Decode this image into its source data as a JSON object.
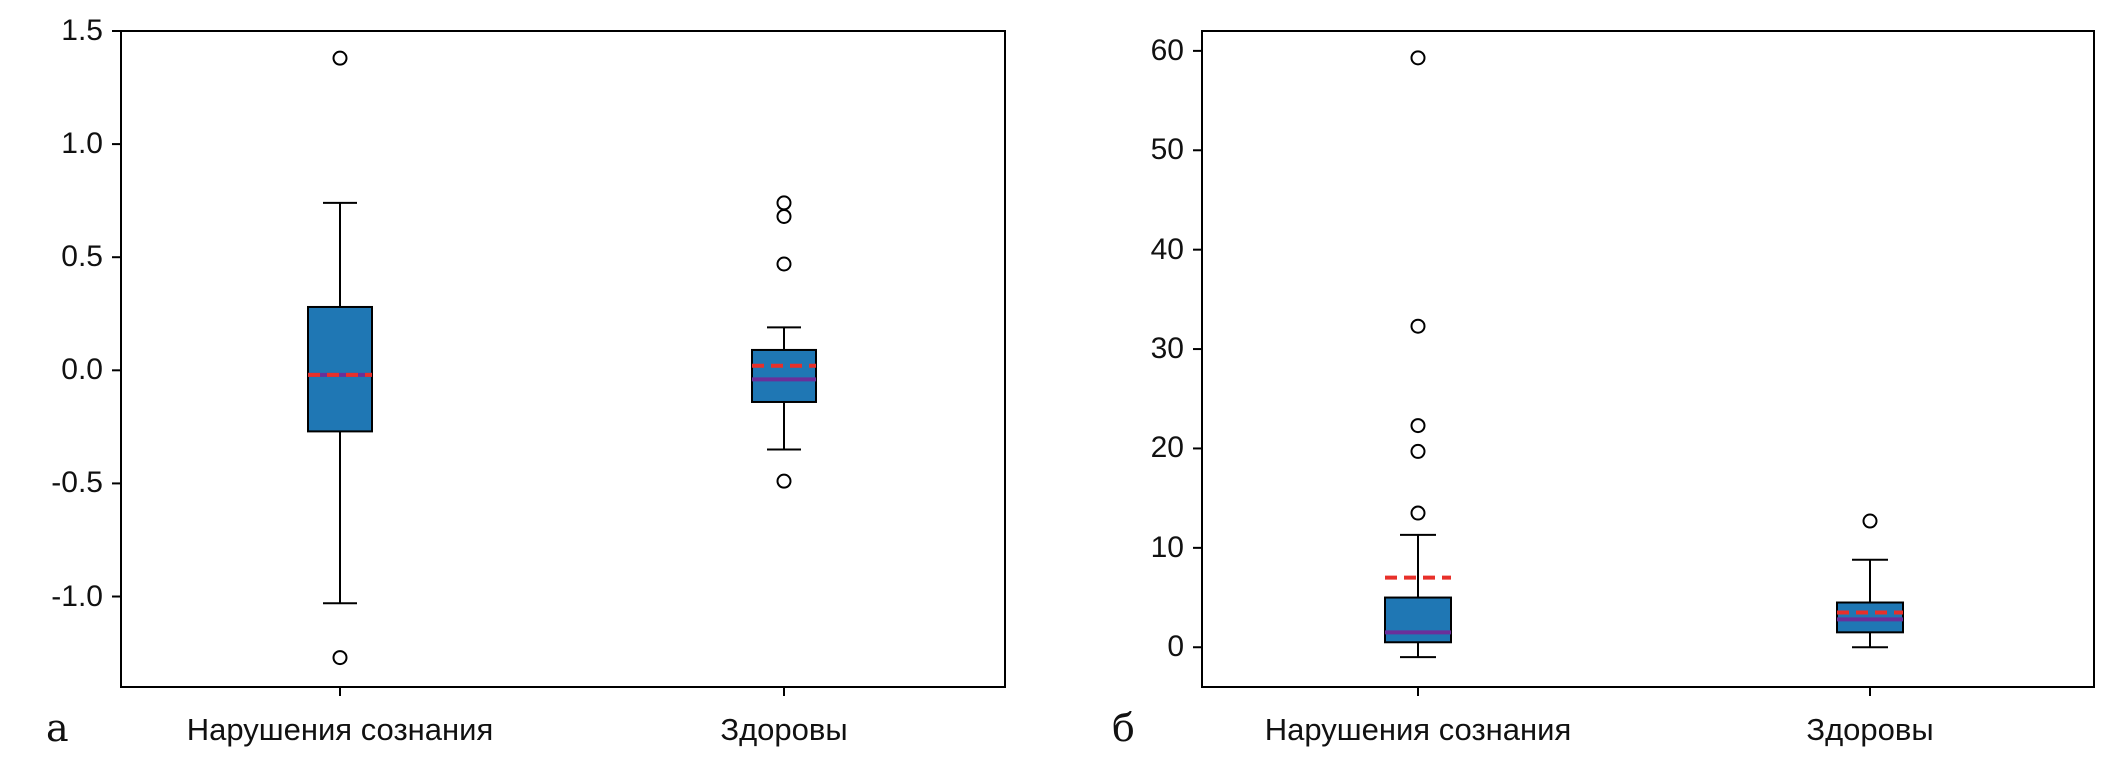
{
  "colors": {
    "box_fill": "#1f77b4",
    "median": "#6a2f9a",
    "mean": "#e8302a",
    "outline": "#000000"
  },
  "chart_data": [
    {
      "type": "box",
      "panel_label": "а",
      "categories": [
        "Нарушения сознания",
        "Здоровы"
      ],
      "ylim": [
        -1.4,
        1.5
      ],
      "yticks": [
        "1.5",
        "1.0",
        "0.5",
        "0.0",
        "-0.5",
        "-1.0"
      ],
      "ytick_values": [
        1.5,
        1.0,
        0.5,
        0.0,
        -0.5,
        -1.0
      ],
      "boxes": [
        {
          "whisker_low": -1.03,
          "q1": -0.27,
          "median": -0.02,
          "mean": -0.02,
          "q3": 0.28,
          "whisker_high": 0.74,
          "outliers": [
            1.38,
            -1.27
          ]
        },
        {
          "whisker_low": -0.35,
          "q1": -0.14,
          "median": -0.04,
          "mean": 0.02,
          "q3": 0.09,
          "whisker_high": 0.19,
          "outliers": [
            0.74,
            0.68,
            0.47,
            -0.49
          ]
        }
      ]
    },
    {
      "type": "box",
      "panel_label": "б",
      "categories": [
        "Нарушения сознания",
        "Здоровы"
      ],
      "ylim": [
        -4,
        62
      ],
      "yticks": [
        "60",
        "50",
        "40",
        "30",
        "20",
        "10",
        "0"
      ],
      "ytick_values": [
        60,
        50,
        40,
        30,
        20,
        10,
        0
      ],
      "boxes": [
        {
          "whisker_low": -1,
          "q1": 0.5,
          "median": 1.5,
          "mean": 7,
          "q3": 5,
          "whisker_high": 11.3,
          "outliers": [
            59.3,
            32.3,
            22.3,
            19.7,
            13.5
          ]
        },
        {
          "whisker_low": 0,
          "q1": 1.5,
          "median": 2.8,
          "mean": 3.5,
          "q3": 4.5,
          "whisker_high": 8.8,
          "outliers": [
            12.7
          ]
        }
      ]
    }
  ]
}
